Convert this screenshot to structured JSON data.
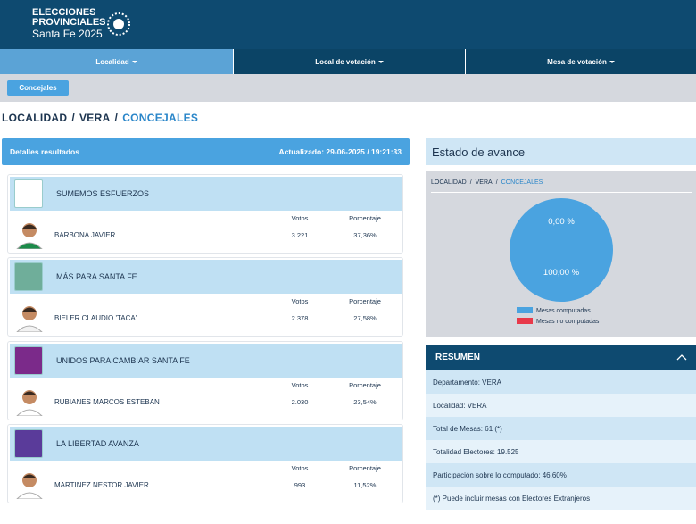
{
  "header": {
    "title_line1": "ELECCIONES",
    "title_line2": "PROVINCIALES",
    "subtitle": "Santa Fe 2025"
  },
  "nav": [
    "Localidad",
    "Local de votación",
    "Mesa de votación"
  ],
  "filter_button": "Concejales",
  "breadcrumb": [
    "LOCALIDAD",
    "VERA",
    "CONCEJALES"
  ],
  "breadcrumb_separator": "/",
  "results": {
    "title": "Detalles resultados",
    "updated": "Actualizado: 29-06-2025 / 19:21:33",
    "votes_header": "Votos",
    "percent_header": "Porcentaje",
    "lists": [
      {
        "party": "SUMEMOS ESFUERZOS",
        "candidate": "BARBONA JAVIER",
        "votes": "3.221",
        "percent": "37,36%"
      },
      {
        "party": "MÁS PARA SANTA FE",
        "candidate": "BIELER CLAUDIO 'TACA'",
        "votes": "2.378",
        "percent": "27,58%"
      },
      {
        "party": "UNIDOS PARA CAMBIAR SANTA FE",
        "candidate": "RUBIANES MARCOS ESTEBAN",
        "votes": "2.030",
        "percent": "23,54%"
      },
      {
        "party": "LA LIBERTAD AVANZA",
        "candidate": "MARTINEZ NESTOR JAVIER",
        "votes": "993",
        "percent": "11,52%"
      }
    ]
  },
  "progress": {
    "title": "Estado de avance",
    "pie": {
      "values": [
        100,
        0
      ],
      "value_labels": [
        "100,00 %",
        "0,00 %"
      ],
      "legend": [
        "Mesas computadas",
        "Mesas no computadas"
      ],
      "colors": [
        "#4aa3e0",
        "#e8394a"
      ]
    }
  },
  "summary": {
    "title": "RESUMEN",
    "rows": [
      "Departamento: VERA",
      "Localidad: VERA",
      "Total de Mesas: 61 (*)",
      "Totalidad Electores: 19.525",
      "Participación sobre lo computado: 46,60%",
      "(*) Puede incluir mesas con Electores Extranjeros"
    ]
  }
}
